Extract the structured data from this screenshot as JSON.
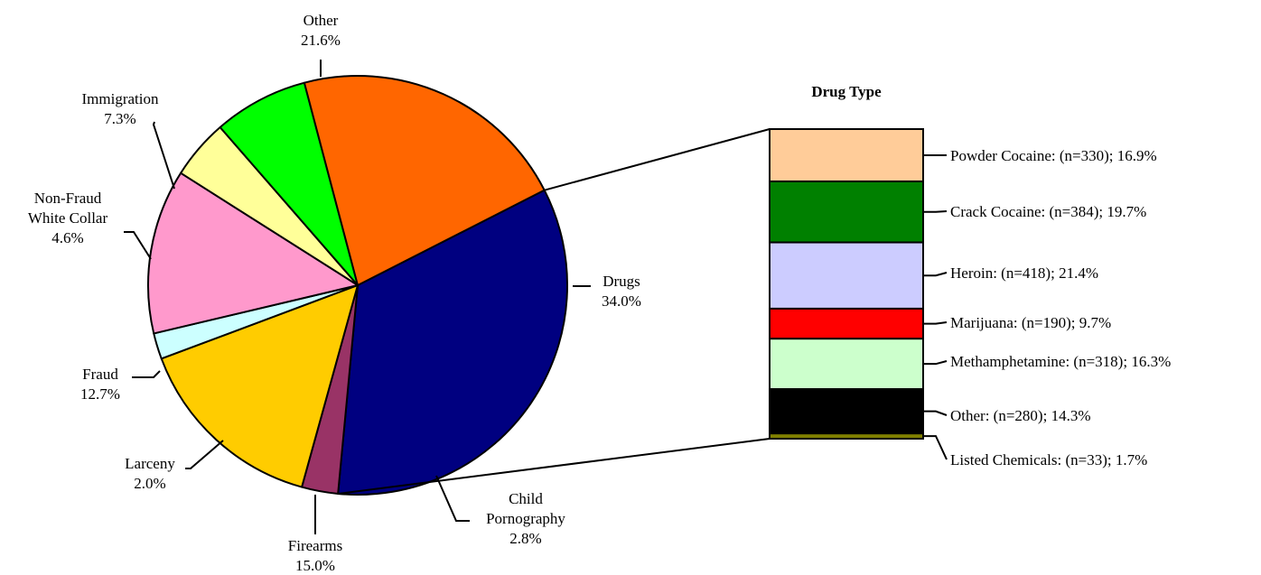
{
  "chart_data": [
    {
      "type": "pie",
      "categories": [
        "Drugs",
        "Child Pornography",
        "Firearms",
        "Larceny",
        "Fraud",
        "Non-Fraud White Collar",
        "Immigration",
        "Other"
      ],
      "label_lines": [
        [
          "Drugs",
          "34.0%"
        ],
        [
          "Child",
          "Pornography",
          "2.8%"
        ],
        [
          "Firearms",
          "15.0%"
        ],
        [
          "Larceny",
          "2.0%"
        ],
        [
          "Fraud",
          "12.7%"
        ],
        [
          "Non-Fraud",
          "White Collar",
          "4.6%"
        ],
        [
          "Immigration",
          "7.3%"
        ],
        [
          "Other",
          "21.6%"
        ]
      ],
      "values": [
        34.0,
        2.8,
        15.0,
        2.0,
        12.7,
        4.6,
        7.3,
        21.6
      ],
      "colors": [
        "#000080",
        "#993366",
        "#FFCC00",
        "#CCFFFF",
        "#FF99CC",
        "#FFFF99",
        "#00FF00",
        "#FF6600"
      ]
    },
    {
      "type": "bar",
      "stacked": true,
      "title": "Drug Type",
      "categories": [
        "Powder Cocaine",
        "Crack Cocaine",
        "Heroin",
        "Marijuana",
        "Methamphetamine",
        "Other",
        "Listed Chemicals"
      ],
      "labels": [
        "Powder Cocaine:  (n=330); 16.9%",
        "Crack Cocaine:  (n=384); 19.7%",
        "Heroin:  (n=418); 21.4%",
        "Marijuana:  (n=190); 9.7%",
        "Methamphetamine:  (n=318); 16.3%",
        "Other:  (n=280); 14.3%",
        "Listed Chemicals:  (n=33); 1.7%"
      ],
      "counts": [
        330,
        384,
        418,
        190,
        318,
        280,
        33
      ],
      "values": [
        16.9,
        19.7,
        21.4,
        9.7,
        16.3,
        14.3,
        1.7
      ],
      "colors": [
        "#FFCC99",
        "#008000",
        "#CCCCFF",
        "#FF0000",
        "#CCFFCC",
        "#000000",
        "#808000"
      ]
    }
  ]
}
